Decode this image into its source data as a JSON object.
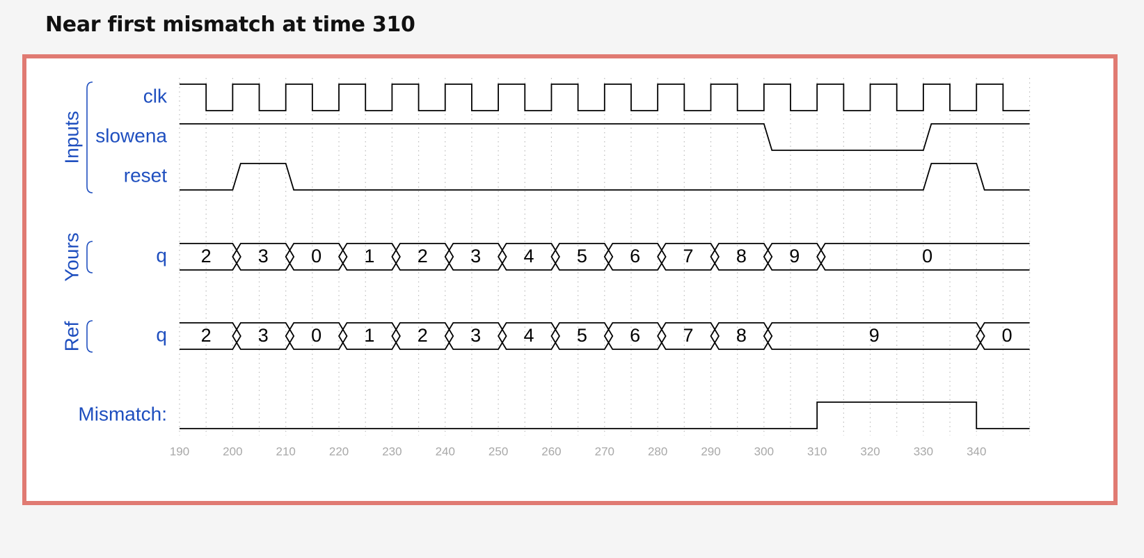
{
  "title": "Near first mismatch at time 310",
  "colors": {
    "frame": "#e07a72",
    "label": "#1f4fbf",
    "trace": "#000000",
    "grid": "#bbbbbb",
    "tick": "#a8a8a8"
  },
  "timeline": {
    "start": 190,
    "end": 350,
    "ticks": [
      190,
      200,
      210,
      220,
      230,
      240,
      250,
      260,
      270,
      280,
      290,
      300,
      310,
      320,
      330,
      340
    ],
    "clock_period": 10,
    "transition_time": 1.5
  },
  "groups": [
    {
      "label": "Inputs",
      "signals": [
        "clk",
        "slowena",
        "reset"
      ]
    },
    {
      "label": "Yours",
      "signals": [
        "q"
      ]
    },
    {
      "label": "Ref",
      "signals": [
        "q"
      ]
    }
  ],
  "signals": {
    "clk": {
      "label": "clk",
      "type": "clock",
      "high_at_start": true
    },
    "slowena": {
      "label": "slowena",
      "type": "bit",
      "changes": [
        [
          190,
          1
        ],
        [
          300,
          0
        ],
        [
          330,
          1
        ]
      ]
    },
    "reset": {
      "label": "reset",
      "type": "bit",
      "changes": [
        [
          190,
          0
        ],
        [
          200,
          1
        ],
        [
          210,
          0
        ],
        [
          330,
          1
        ],
        [
          340,
          0
        ]
      ]
    },
    "yours_q": {
      "label": "q",
      "type": "bus",
      "segments": [
        [
          190,
          "2"
        ],
        [
          200,
          "3"
        ],
        [
          210,
          "0"
        ],
        [
          220,
          "1"
        ],
        [
          230,
          "2"
        ],
        [
          240,
          "3"
        ],
        [
          250,
          "4"
        ],
        [
          260,
          "5"
        ],
        [
          270,
          "6"
        ],
        [
          280,
          "7"
        ],
        [
          290,
          "8"
        ],
        [
          300,
          "9"
        ],
        [
          310,
          "0"
        ]
      ]
    },
    "ref_q": {
      "label": "q",
      "type": "bus",
      "segments": [
        [
          190,
          "2"
        ],
        [
          200,
          "3"
        ],
        [
          210,
          "0"
        ],
        [
          220,
          "1"
        ],
        [
          230,
          "2"
        ],
        [
          240,
          "3"
        ],
        [
          250,
          "4"
        ],
        [
          260,
          "5"
        ],
        [
          270,
          "6"
        ],
        [
          280,
          "7"
        ],
        [
          290,
          "8"
        ],
        [
          300,
          "9"
        ],
        [
          340,
          "0"
        ]
      ]
    },
    "mismatch": {
      "label": "Mismatch:",
      "type": "bit",
      "changes": [
        [
          190,
          0
        ],
        [
          310,
          1
        ],
        [
          340,
          0
        ]
      ]
    }
  }
}
